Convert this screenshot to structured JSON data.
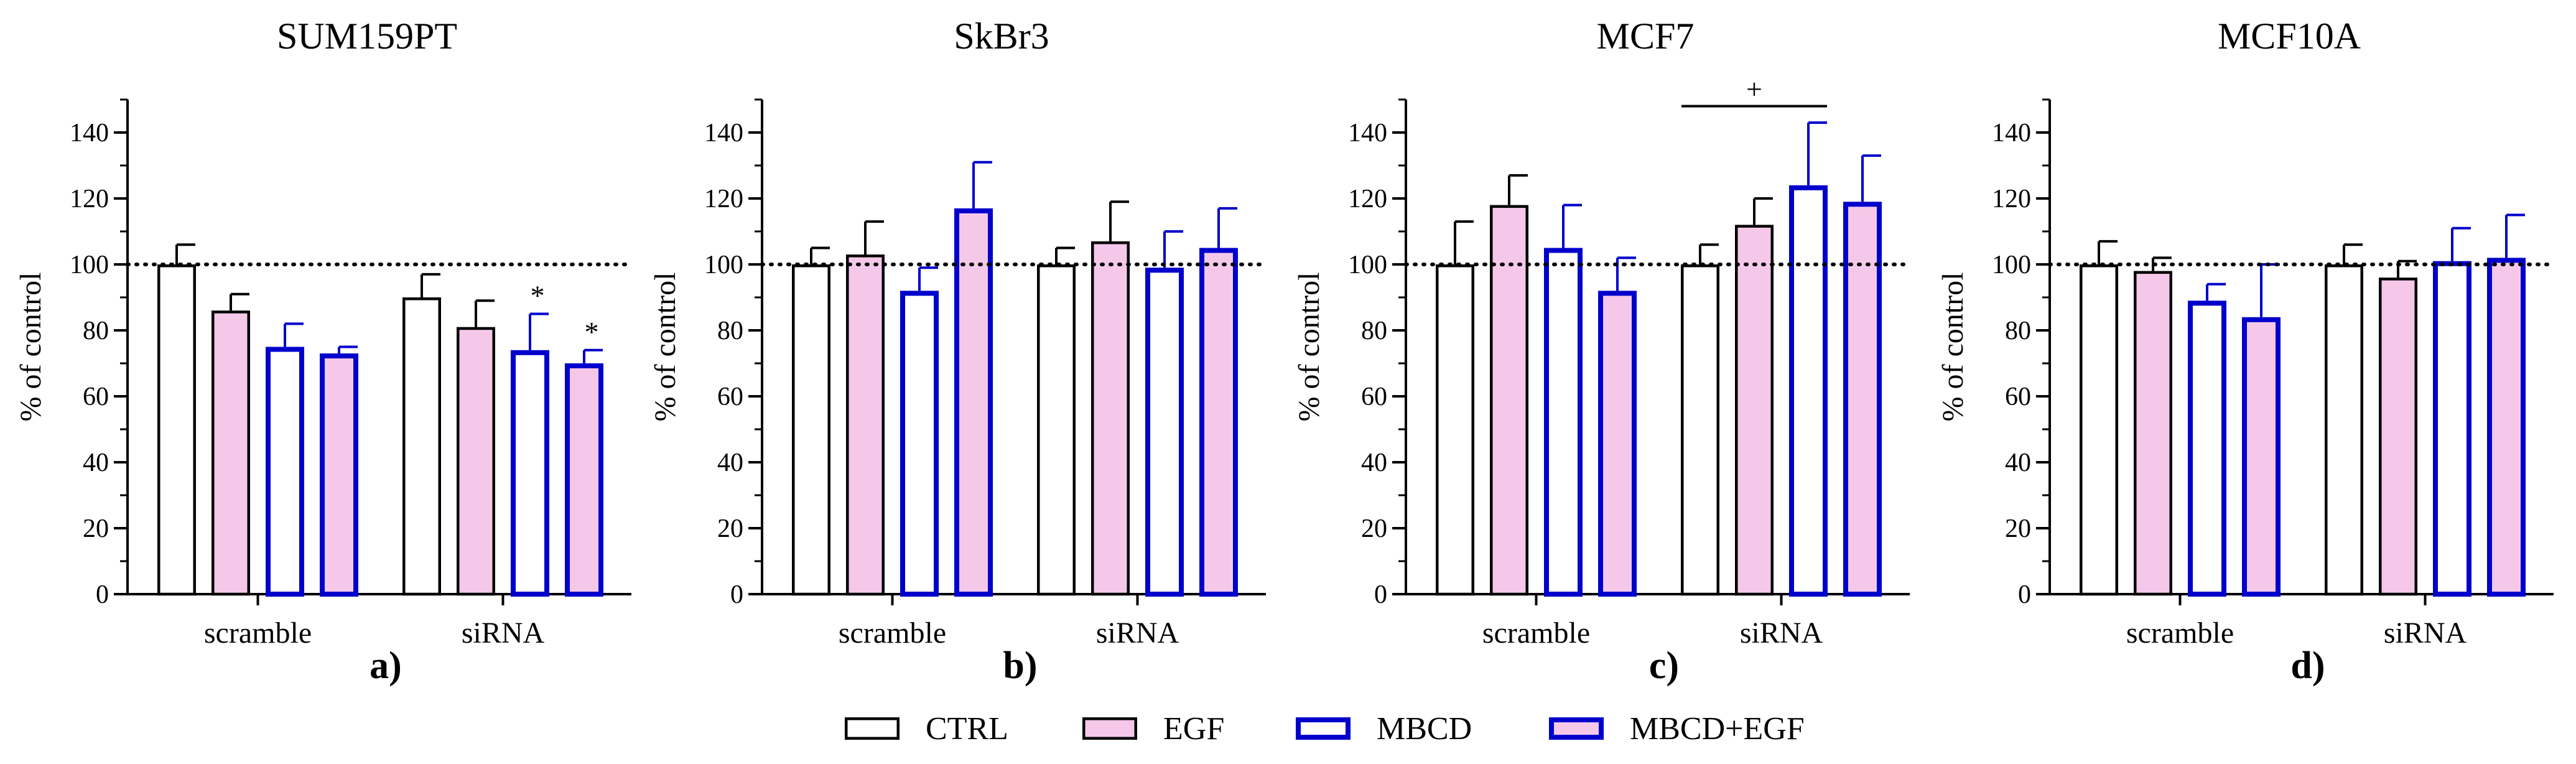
{
  "colors": {
    "ctrl_fill": "#ffffff",
    "ctrl_stroke": "#000000",
    "egf_fill": "#f5c8ea",
    "egf_stroke": "#000000",
    "mbcd_fill": "#ffffff",
    "mbcd_stroke": "#0000cc",
    "mbcdegf_fill": "#f5c8ea",
    "mbcdegf_stroke": "#0000cc",
    "axis": "#000000"
  },
  "legend": {
    "items": [
      {
        "label": "CTRL",
        "key": "ctrl"
      },
      {
        "label": "EGF",
        "key": "egf"
      },
      {
        "label": "MBCD",
        "key": "mbcd"
      },
      {
        "label": "MBCD+EGF",
        "key": "mbcdegf"
      }
    ]
  },
  "chart_data": [
    {
      "type": "bar",
      "title": "SUM159PT",
      "panel_label": "a)",
      "ylabel": "% of control",
      "ylim": [
        0,
        150
      ],
      "yticks": [
        0,
        20,
        40,
        60,
        80,
        100,
        120,
        140
      ],
      "reference_line": 100,
      "categories": [
        "scramble",
        "siRNA"
      ],
      "series": [
        {
          "name": "CTRL",
          "key": "ctrl",
          "values": [
            100,
            90
          ],
          "errors": [
            6,
            7
          ]
        },
        {
          "name": "EGF",
          "key": "egf",
          "values": [
            86,
            81
          ],
          "errors": [
            5,
            8
          ]
        },
        {
          "name": "MBCD",
          "key": "mbcd",
          "values": [
            75,
            74
          ],
          "errors": [
            7,
            11
          ]
        },
        {
          "name": "MBCD+EGF",
          "key": "mbcdegf",
          "values": [
            73,
            70
          ],
          "errors": [
            2,
            4
          ]
        }
      ],
      "annotations": [
        {
          "text": "*",
          "category": 1,
          "series": 2
        },
        {
          "text": "*",
          "category": 1,
          "series": 3
        }
      ]
    },
    {
      "type": "bar",
      "title": "SkBr3",
      "panel_label": "b)",
      "ylabel": "% of control",
      "ylim": [
        0,
        150
      ],
      "yticks": [
        0,
        20,
        40,
        60,
        80,
        100,
        120,
        140
      ],
      "reference_line": 100,
      "categories": [
        "scramble",
        "siRNA"
      ],
      "series": [
        {
          "name": "CTRL",
          "key": "ctrl",
          "values": [
            100,
            100
          ],
          "errors": [
            5,
            5
          ]
        },
        {
          "name": "EGF",
          "key": "egf",
          "values": [
            103,
            107
          ],
          "errors": [
            10,
            12
          ]
        },
        {
          "name": "MBCD",
          "key": "mbcd",
          "values": [
            92,
            99
          ],
          "errors": [
            7,
            11
          ]
        },
        {
          "name": "MBCD+EGF",
          "key": "mbcdegf",
          "values": [
            117,
            105
          ],
          "errors": [
            14,
            12
          ]
        }
      ],
      "annotations": []
    },
    {
      "type": "bar",
      "title": "MCF7",
      "panel_label": "c)",
      "ylabel": "% of control",
      "ylim": [
        0,
        150
      ],
      "yticks": [
        0,
        20,
        40,
        60,
        80,
        100,
        120,
        140
      ],
      "reference_line": 100,
      "categories": [
        "scramble",
        "siRNA"
      ],
      "series": [
        {
          "name": "CTRL",
          "key": "ctrl",
          "values": [
            100,
            100
          ],
          "errors": [
            13,
            6
          ]
        },
        {
          "name": "EGF",
          "key": "egf",
          "values": [
            118,
            112
          ],
          "errors": [
            9,
            8
          ]
        },
        {
          "name": "MBCD",
          "key": "mbcd",
          "values": [
            105,
            124
          ],
          "errors": [
            13,
            19
          ]
        },
        {
          "name": "MBCD+EGF",
          "key": "mbcdegf",
          "values": [
            92,
            119
          ],
          "errors": [
            10,
            14
          ]
        }
      ],
      "annotations": [],
      "brackets": [
        {
          "text": "+",
          "from": {
            "category": 1,
            "series": 0
          },
          "to": {
            "category": 1,
            "series": 2
          },
          "level": 148
        }
      ]
    },
    {
      "type": "bar",
      "title": "MCF10A",
      "panel_label": "d)",
      "ylabel": "% of control",
      "ylim": [
        0,
        150
      ],
      "yticks": [
        0,
        20,
        40,
        60,
        80,
        100,
        120,
        140
      ],
      "reference_line": 100,
      "categories": [
        "scramble",
        "siRNA"
      ],
      "series": [
        {
          "name": "CTRL",
          "key": "ctrl",
          "values": [
            100,
            100
          ],
          "errors": [
            7,
            6
          ]
        },
        {
          "name": "EGF",
          "key": "egf",
          "values": [
            98,
            96
          ],
          "errors": [
            4,
            5
          ]
        },
        {
          "name": "MBCD",
          "key": "mbcd",
          "values": [
            89,
            101
          ],
          "errors": [
            5,
            10
          ]
        },
        {
          "name": "MBCD+EGF",
          "key": "mbcdegf",
          "values": [
            84,
            102
          ],
          "errors": [
            16,
            13
          ]
        }
      ],
      "annotations": []
    }
  ]
}
